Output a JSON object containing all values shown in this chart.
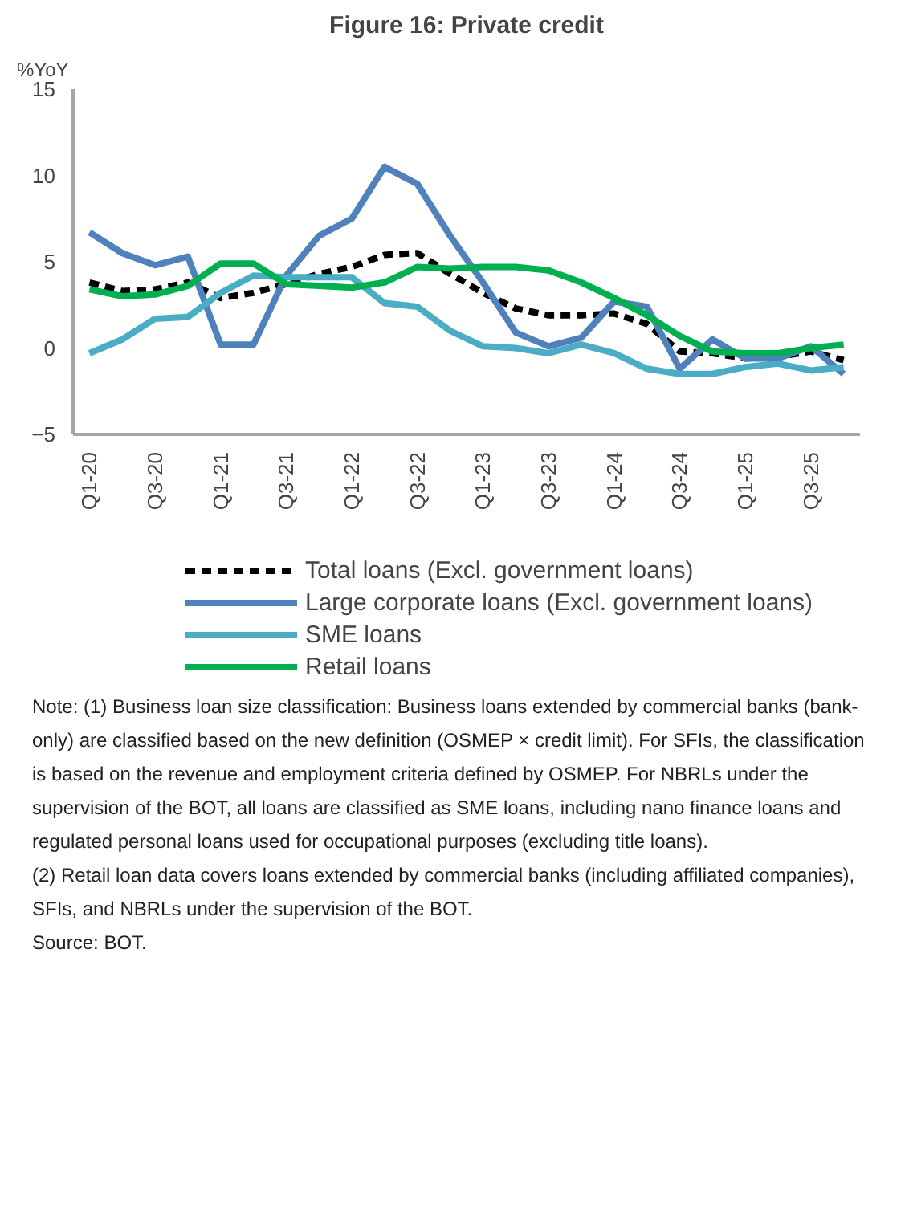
{
  "chart_data": {
    "type": "line",
    "title": "Figure 16: Private credit",
    "ylabel": "%YoY",
    "categories": [
      "Q1-20",
      null,
      "Q3-20",
      null,
      "Q1-21",
      null,
      "Q3-21",
      null,
      "Q1-22",
      null,
      "Q3-22",
      null,
      "Q1-23",
      null,
      "Q3-23",
      null,
      "Q1-24",
      null,
      "Q3-24",
      null,
      "Q1-25",
      null,
      "Q3-25",
      null
    ],
    "series": [
      {
        "name": "Total loans (Excl. government loans)",
        "color": "#000000",
        "line_style": "dashed",
        "values": [
          3.8,
          3.3,
          3.4,
          3.8,
          2.9,
          3.2,
          3.7,
          4.3,
          4.7,
          5.4,
          5.5,
          4.3,
          3.2,
          2.3,
          1.9,
          1.9,
          2.0,
          1.4,
          -0.2,
          -0.3,
          -0.6,
          -0.5,
          -0.2,
          -0.7
        ]
      },
      {
        "name": "Large corporate loans (Excl. government loans)",
        "color": "#4f81bd",
        "line_style": "solid",
        "values": [
          6.7,
          5.5,
          4.8,
          5.3,
          0.2,
          0.2,
          4.2,
          6.5,
          7.5,
          10.5,
          9.5,
          6.5,
          3.8,
          0.9,
          0.1,
          0.6,
          2.7,
          2.4,
          -1.2,
          0.5,
          -0.6,
          -0.6,
          0.1,
          -1.5
        ]
      },
      {
        "name": "SME loans",
        "color": "#4bacc6",
        "line_style": "solid",
        "values": [
          -0.3,
          0.5,
          1.7,
          1.8,
          3.2,
          4.2,
          4.1,
          4.1,
          4.1,
          2.6,
          2.4,
          1.0,
          0.1,
          0.0,
          -0.3,
          0.2,
          -0.3,
          -1.2,
          -1.5,
          -1.5,
          -1.1,
          -0.9,
          -1.3,
          -1.1
        ]
      },
      {
        "name": "Retail loans",
        "color": "#00b050",
        "line_style": "solid",
        "values": [
          3.4,
          3.0,
          3.1,
          3.6,
          4.9,
          4.9,
          3.7,
          3.6,
          3.5,
          3.8,
          4.7,
          4.6,
          4.7,
          4.7,
          4.5,
          3.8,
          2.9,
          1.9,
          0.7,
          -0.2,
          -0.3,
          -0.3,
          0.0,
          0.2
        ]
      }
    ],
    "ylim": [
      -5,
      15
    ],
    "yticks": [
      -5,
      0,
      5,
      10,
      15
    ],
    "grid": false,
    "legend": "bottom",
    "annotations": [
      "Note: (1) Business loan size classification: Business loans extended by commercial banks (bank-only) are classified based on the new definition (OSMEP × credit limit). For SFIs, the classification is based on the revenue and employment criteria defined by OSMEP. For NBRLs under the supervision of the BOT, all loans are classified as SME loans, including nano finance loans and regulated personal loans used for occupational purposes (excluding title loans).",
      "(2) Retail loan data covers loans extended by commercial banks (including affiliated companies), SFIs, and NBRLs under the supervision of the BOT.",
      "Source: BOT."
    ]
  }
}
